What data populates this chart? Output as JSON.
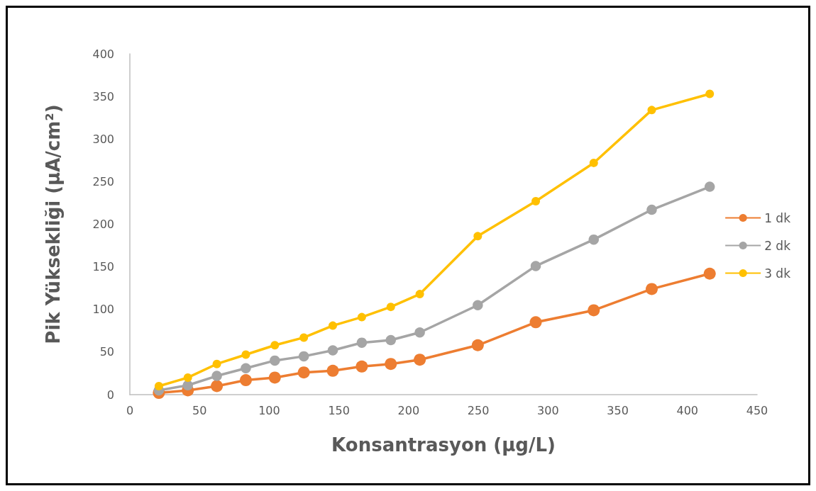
{
  "chart_data": {
    "type": "line",
    "xlabel": "Konsantrasyon (µg/L)",
    "ylabel": "Pik Yüksekliği (µA/cm²)",
    "x": [
      20.8,
      41.6,
      62.4,
      83.2,
      104,
      124.8,
      145.6,
      166.4,
      187.2,
      208,
      249.6,
      291.2,
      332.8,
      374.4,
      416
    ],
    "series": [
      {
        "name": "1 dk",
        "color": "#ed7d31",
        "values": [
          2,
          5,
          10,
          17,
          20,
          26,
          28,
          33,
          36,
          41,
          58,
          85,
          99,
          124,
          142
        ]
      },
      {
        "name": "2 dk",
        "color": "#a5a5a5",
        "values": [
          5,
          11,
          22,
          31,
          40,
          45,
          52,
          61,
          64,
          73,
          105,
          151,
          182,
          217,
          244
        ]
      },
      {
        "name": "3 dk",
        "color": "#ffc000",
        "values": [
          10,
          20,
          36,
          47,
          58,
          67,
          81,
          91,
          103,
          118,
          186,
          227,
          272,
          334,
          353
        ]
      }
    ],
    "xlim": [
      0,
      450
    ],
    "xticks": [
      0,
      50,
      100,
      150,
      200,
      250,
      300,
      350,
      400,
      450
    ],
    "ylim": [
      0,
      400
    ],
    "yticks": [
      0,
      50,
      100,
      150,
      200,
      250,
      300,
      350,
      400
    ],
    "grid": false,
    "legend": "right",
    "marker": "circle",
    "line_style": "solid"
  }
}
